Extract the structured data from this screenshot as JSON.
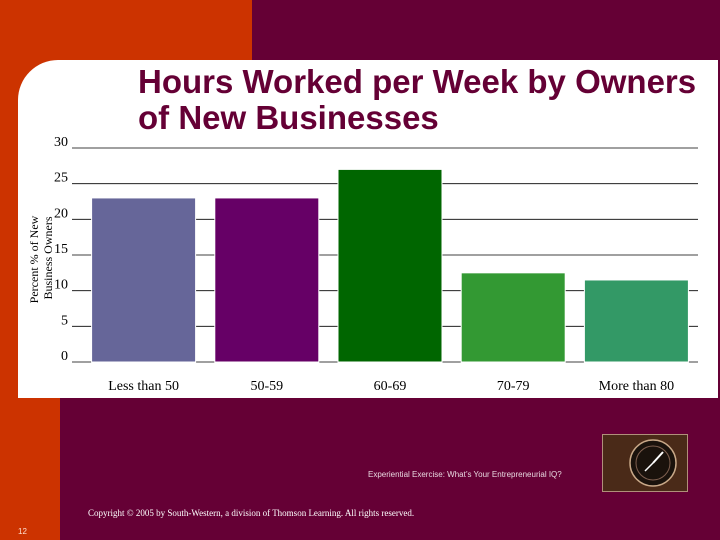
{
  "slide": {
    "title": "Hours Worked per Week by Owners of New Businesses",
    "caption": "Experiential Exercise: What’s Your Entrepreneurial IQ?",
    "copyright": "Copyright © 2005 by South-Western, a division of Thomson Learning. All rights reserved.",
    "page_number": "12",
    "clock_icon": "clock-image"
  },
  "colors": {
    "background": "#650035",
    "accent": "#cc3300",
    "bars": [
      "#666699",
      "#660066",
      "#006600",
      "#339933",
      "#339966"
    ]
  },
  "chart_data": {
    "type": "bar",
    "title": "Hours Worked per Week by Owners of New Businesses",
    "xlabel": "",
    "ylabel": "Percent % of New Business Owners",
    "categories": [
      "Less than 50",
      "50-59",
      "60-69",
      "70-79",
      "More than 80"
    ],
    "values": [
      23,
      23,
      27,
      12.5,
      11.5
    ],
    "ylim": [
      0,
      30
    ],
    "yticks": [
      "0",
      "5",
      "10",
      "15",
      "20",
      "25",
      "30"
    ],
    "grid": true,
    "legend": "none"
  }
}
